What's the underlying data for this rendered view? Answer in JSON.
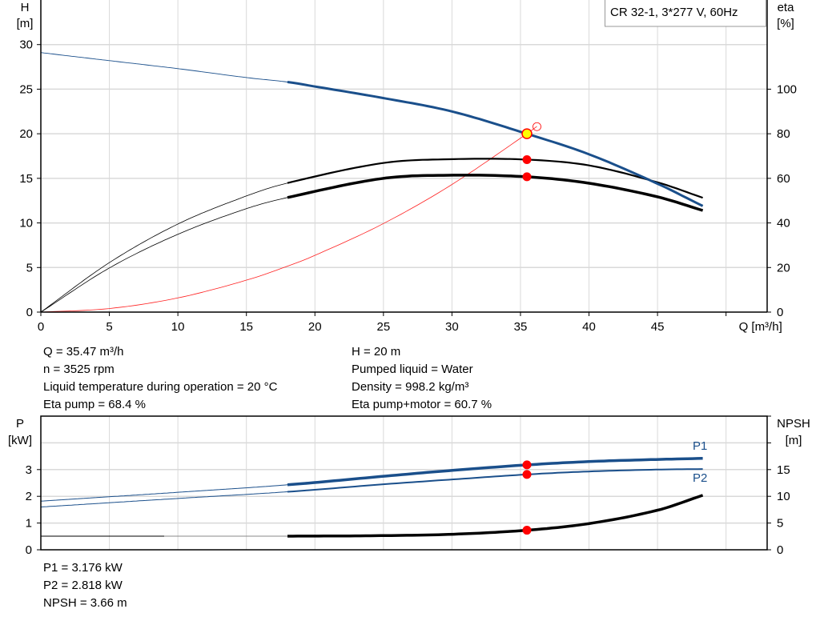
{
  "legend_box": "CR 32-1, 3*277 V, 60Hz",
  "colors": {
    "head": "#1a4f8b",
    "efficiency": "#000000",
    "system_curve": "#ff2020",
    "duty_point_fill": "#ffff00",
    "marker": "#ff0000",
    "power": "#1a4f8b",
    "npsh": "#000000",
    "grid": "#d9d9d9"
  },
  "duty_info": {
    "left": [
      "Q = 35.47 m³/h",
      "n = 3525 rpm",
      "Liquid temperature during operation = 20 °C",
      "Eta pump = 68.4 %"
    ],
    "right": [
      "H = 20 m",
      "Pumped liquid = Water",
      "Density = 998.2 kg/m³",
      "Eta pump+motor = 60.7 %"
    ]
  },
  "power_info": [
    "P1 = 3.176 kW",
    "P2 = 2.818 kW",
    "NPSH = 3.66 m"
  ],
  "chart_data": [
    {
      "type": "line",
      "y_label": [
        "H",
        "[m]"
      ],
      "y2_label": [
        "eta",
        "[%]"
      ],
      "x_label": "Q [m³/h]",
      "xlim": [
        0,
        53
      ],
      "ylim": [
        0,
        35
      ],
      "y2lim": [
        0,
        140
      ],
      "x_ticks": [
        0,
        5,
        10,
        15,
        20,
        25,
        30,
        35,
        40,
        45
      ],
      "y_ticks": [
        0,
        5,
        10,
        15,
        20,
        25,
        30
      ],
      "y2_ticks": [
        0,
        20,
        40,
        60,
        80,
        100
      ],
      "grid": true,
      "series": [
        {
          "id": "head",
          "axis": "y",
          "x": [
            0,
            5,
            10,
            15,
            18,
            20,
            25,
            30,
            35.47,
            40,
            45,
            48.3
          ],
          "y": [
            29.1,
            28.2,
            27.3,
            26.3,
            25.8,
            25.3,
            24.0,
            22.5,
            20.0,
            17.7,
            14.4,
            11.9
          ]
        },
        {
          "id": "eta_pump",
          "axis": "y2",
          "x": [
            0,
            5,
            10,
            15,
            18,
            25,
            30,
            35.47,
            40,
            45,
            48.3
          ],
          "y": [
            0,
            22.2,
            39.5,
            52.1,
            57.9,
            66.9,
            68.6,
            68.4,
            65.8,
            58.2,
            51.3
          ]
        },
        {
          "id": "eta_pump_motor",
          "axis": "y2",
          "x": [
            0,
            5,
            10,
            15,
            18,
            25,
            30,
            35.47,
            40,
            45,
            48.3
          ],
          "y": [
            0,
            19.8,
            34.9,
            46.4,
            51.4,
            60.0,
            61.4,
            60.7,
            57.8,
            51.7,
            45.6
          ]
        },
        {
          "id": "system_curve",
          "axis": "y",
          "x": [
            0,
            5,
            10,
            15,
            18,
            20,
            25,
            30,
            35.47,
            36.2
          ],
          "y": [
            0,
            0.4,
            1.59,
            3.58,
            5.15,
            6.36,
            9.93,
            14.31,
            20.0,
            20.83
          ]
        }
      ],
      "duty_point": {
        "Q": 35.47,
        "H": 20,
        "eta_pump": 68.4,
        "eta_pump_motor": 60.7
      },
      "system_end_point": {
        "Q": 36.2,
        "H": 20.8
      }
    },
    {
      "type": "line",
      "y_label": [
        "P",
        "[kW]"
      ],
      "y2_label": [
        "NPSH",
        "[m]"
      ],
      "xlim": [
        0,
        53
      ],
      "ylim": [
        0,
        5
      ],
      "y2lim": [
        0,
        25
      ],
      "y_ticks": [
        0,
        1,
        2,
        3
      ],
      "y2_ticks": [
        0,
        5,
        10,
        15
      ],
      "grid": true,
      "series": [
        {
          "id": "P1",
          "name": "P1",
          "axis": "y",
          "x": [
            0,
            10,
            18,
            25,
            30,
            35.47,
            40,
            45,
            48.3
          ],
          "y": [
            1.82,
            2.15,
            2.43,
            2.75,
            2.97,
            3.176,
            3.3,
            3.38,
            3.42
          ]
        },
        {
          "id": "P2",
          "name": "P2",
          "axis": "y",
          "x": [
            0,
            10,
            18,
            25,
            30,
            35.47,
            40,
            45,
            48.3
          ],
          "y": [
            1.6,
            1.92,
            2.17,
            2.45,
            2.63,
            2.818,
            2.93,
            3.0,
            3.02
          ]
        },
        {
          "id": "NPSH",
          "axis": "y2",
          "x": [
            0,
            18,
            25,
            30,
            35.47,
            40,
            45,
            48.3
          ],
          "y": [
            2.55,
            2.55,
            2.65,
            2.9,
            3.66,
            4.9,
            7.4,
            10.2
          ]
        }
      ],
      "duty_point": {
        "Q": 35.47,
        "P1": 3.176,
        "P2": 2.818,
        "NPSH": 3.66
      }
    }
  ]
}
